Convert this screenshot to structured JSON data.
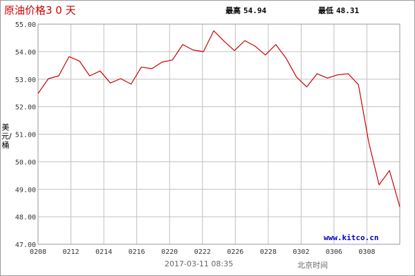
{
  "header": {
    "title": "原油价格3 0 天",
    "high_label": "最高",
    "high_value": "54.94",
    "low_label": "最低",
    "low_value": "48.31"
  },
  "footer": {
    "timestamp": "2017-03-11 08:35",
    "timezone": "北京时间"
  },
  "watermark": "www.kitco.cn",
  "colors": {
    "line": "#cc0000",
    "grid": "#c0c0c0",
    "title": "#cc0000",
    "watermark": "#0000cc"
  },
  "chart_data": {
    "type": "line",
    "title": "原油价格3 0 天",
    "xlabel": "",
    "ylabel": "美元/桶",
    "ylim": [
      47.0,
      55.0
    ],
    "yticks": [
      "47.00",
      "48.00",
      "49.00",
      "50.00",
      "51.00",
      "52.00",
      "53.00",
      "54.00",
      "55.00"
    ],
    "xticks": [
      "0208",
      "0212",
      "0214",
      "0216",
      "0220",
      "0222",
      "0226",
      "0228",
      "0302",
      "0306",
      "0308"
    ],
    "grid": true,
    "series": [
      {
        "values": [
          52.48,
          53.02,
          53.12,
          53.82,
          53.66,
          53.12,
          53.3,
          52.86,
          53.02,
          52.82,
          53.44,
          53.38,
          53.62,
          53.7,
          54.26,
          54.06,
          54.0,
          54.76,
          54.38,
          54.04,
          54.4,
          54.2,
          53.88,
          54.26,
          53.76,
          53.08,
          52.72,
          53.2,
          53.04,
          53.16,
          53.2,
          52.8,
          50.7,
          49.16,
          49.68,
          48.36
        ]
      }
    ]
  }
}
